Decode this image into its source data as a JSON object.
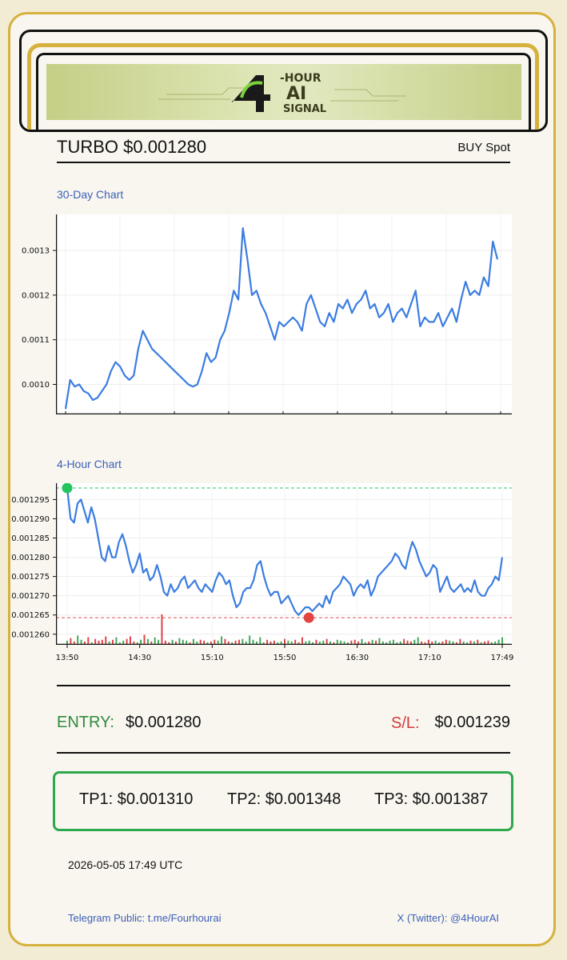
{
  "header": {
    "symbol": "TURBO",
    "price": "$0.001280",
    "title": "TURBO $0.001280",
    "trade_type": "BUY Spot",
    "logo": {
      "top_text": "-HOUR",
      "mid_text": "AI",
      "bottom_text": "SIGNAL",
      "numeral": "4"
    }
  },
  "chart_data": [
    {
      "type": "line",
      "title": "30-Day Chart",
      "ylim": [
        0.00094,
        0.00137
      ],
      "yticks": [
        "0.0010",
        "0.0011",
        "0.0012",
        "0.0013"
      ],
      "ytick_values": [
        0.001,
        0.0011,
        0.0012,
        0.0013
      ],
      "xlabel": "",
      "ylabel": "",
      "grid": true,
      "line_color": "#3b7de0",
      "series": [
        {
          "values": [
            0.000945,
            0.00101,
            0.000995,
            0.001,
            0.000985,
            0.00098,
            0.000965,
            0.00097,
            0.000985,
            0.001,
            0.00103,
            0.00105,
            0.00104,
            0.00102,
            0.00101,
            0.00102,
            0.00108,
            0.00112,
            0.0011,
            0.00108,
            0.00107,
            0.00106,
            0.00105,
            0.00104,
            0.00103,
            0.00102,
            0.00101,
            0.001,
            0.000995,
            0.001,
            0.00103,
            0.00107,
            0.00105,
            0.00106,
            0.0011,
            0.00112,
            0.00116,
            0.00121,
            0.00119,
            0.00135,
            0.00128,
            0.0012,
            0.00121,
            0.00118,
            0.00116,
            0.00113,
            0.0011,
            0.00114,
            0.00113,
            0.00114,
            0.00115,
            0.00114,
            0.00112,
            0.00118,
            0.0012,
            0.00117,
            0.00114,
            0.00113,
            0.00116,
            0.00114,
            0.00118,
            0.00117,
            0.00119,
            0.00116,
            0.00118,
            0.00119,
            0.00121,
            0.00117,
            0.00118,
            0.00115,
            0.00116,
            0.00118,
            0.00114,
            0.00116,
            0.00117,
            0.00115,
            0.00118,
            0.00121,
            0.00113,
            0.00115,
            0.00114,
            0.00114,
            0.00116,
            0.00113,
            0.00115,
            0.00117,
            0.00114,
            0.00119,
            0.00123,
            0.0012,
            0.00121,
            0.0012,
            0.00124,
            0.00122,
            0.00132,
            0.00128
          ],
          "dates": []
        }
      ]
    },
    {
      "type": "line",
      "title": "4-Hour Chart",
      "ylim": [
        0.0012585,
        0.001298
      ],
      "yticks": [
        "0.001260",
        "0.001265",
        "0.001270",
        "0.001275",
        "0.001280",
        "0.001285",
        "0.001290",
        "0.001295"
      ],
      "ytick_values": [
        0.00126,
        0.001265,
        0.00127,
        0.001275,
        0.00128,
        0.001285,
        0.00129,
        0.001295
      ],
      "xticks": [
        "13:50",
        "14:30",
        "15:10",
        "15:50",
        "16:30",
        "17:10",
        "17:49"
      ],
      "grid": true,
      "line_color": "#3b7de0",
      "high_line": {
        "value": 0.001298,
        "color": "#2ec26a"
      },
      "low_line": {
        "value": 0.0012643,
        "color": "#e05050"
      },
      "high_marker": {
        "x_index": 0,
        "value": 0.001298,
        "color": "#22c55e"
      },
      "low_marker": {
        "x_index": 70,
        "value": 0.0012643,
        "color": "#e24444"
      },
      "series": [
        {
          "values": [
            0.001298,
            0.00129,
            0.001289,
            0.001294,
            0.001295,
            0.001292,
            0.001289,
            0.001293,
            0.00129,
            0.001285,
            0.00128,
            0.001279,
            0.001283,
            0.00128,
            0.00128,
            0.001284,
            0.001286,
            0.001283,
            0.001279,
            0.001276,
            0.001278,
            0.001281,
            0.001276,
            0.001277,
            0.001274,
            0.001275,
            0.001278,
            0.001275,
            0.001271,
            0.00127,
            0.001273,
            0.001271,
            0.001272,
            0.001274,
            0.001275,
            0.001272,
            0.001273,
            0.001274,
            0.001272,
            0.001271,
            0.001273,
            0.001272,
            0.001271,
            0.001274,
            0.001276,
            0.001275,
            0.001273,
            0.001274,
            0.00127,
            0.001267,
            0.001268,
            0.001271,
            0.001272,
            0.001272,
            0.001274,
            0.001278,
            0.001279,
            0.001275,
            0.001272,
            0.00127,
            0.001271,
            0.001271,
            0.001268,
            0.001269,
            0.00127,
            0.001268,
            0.001266,
            0.001265,
            0.001266,
            0.001267,
            0.001267,
            0.001266,
            0.001267,
            0.001268,
            0.001267,
            0.00127,
            0.001268,
            0.001271,
            0.001272,
            0.001273,
            0.001275,
            0.001274,
            0.001273,
            0.00127,
            0.001272,
            0.001273,
            0.001272,
            0.001274,
            0.00127,
            0.001272,
            0.001275,
            0.001276,
            0.001277,
            0.001278,
            0.001279,
            0.001281,
            0.00128,
            0.001278,
            0.001277,
            0.001281,
            0.001284,
            0.001282,
            0.001279,
            0.001277,
            0.001275,
            0.001276,
            0.001278,
            0.001277,
            0.001271,
            0.001273,
            0.001275,
            0.001272,
            0.001271,
            0.001272,
            0.001273,
            0.001271,
            0.001272,
            0.001271,
            0.001274,
            0.001271,
            0.00127,
            0.00127,
            0.001272,
            0.001273,
            0.001275,
            0.001274,
            0.00128
          ]
        }
      ],
      "volume": {
        "max": 1.0,
        "values": [
          0.25,
          0.4,
          0.2,
          0.55,
          0.3,
          0.2,
          0.45,
          0.15,
          0.35,
          0.25,
          0.3,
          0.5,
          0.2,
          0.3,
          0.45,
          0.15,
          0.25,
          0.35,
          0.5,
          0.2,
          0.15,
          0.3,
          0.6,
          0.35,
          0.2,
          0.45,
          0.3,
          1.0,
          0.25,
          0.15,
          0.3,
          0.2,
          0.4,
          0.3,
          0.25,
          0.15,
          0.35,
          0.2,
          0.3,
          0.25,
          0.15,
          0.2,
          0.3,
          0.25,
          0.5,
          0.35,
          0.2,
          0.15,
          0.25,
          0.3,
          0.35,
          0.2,
          0.55,
          0.3,
          0.2,
          0.45,
          0.15,
          0.3,
          0.2,
          0.25,
          0.15,
          0.2,
          0.35,
          0.25,
          0.2,
          0.3,
          0.15,
          0.45,
          0.2,
          0.25,
          0.15,
          0.3,
          0.2,
          0.25,
          0.35,
          0.2,
          0.15,
          0.3,
          0.25,
          0.2,
          0.15,
          0.25,
          0.3,
          0.2,
          0.35,
          0.15,
          0.2,
          0.3,
          0.25,
          0.4,
          0.2,
          0.15,
          0.25,
          0.3,
          0.15,
          0.2,
          0.35,
          0.25,
          0.2,
          0.3,
          0.45,
          0.2,
          0.15,
          0.3,
          0.2,
          0.25,
          0.15,
          0.2,
          0.3,
          0.25,
          0.2,
          0.15,
          0.35,
          0.2,
          0.15,
          0.25,
          0.2,
          0.3,
          0.15,
          0.2,
          0.25,
          0.15,
          0.2,
          0.3,
          0.45
        ],
        "up_color": "#2e9e44",
        "down_color": "#d93030"
      }
    }
  ],
  "levels": {
    "entry_label": "ENTRY:",
    "entry_value": "$0.001280",
    "sl_label": "S/L:",
    "sl_value": "$0.001239"
  },
  "targets": [
    {
      "text": "TP1: $0.001310"
    },
    {
      "text": "TP2: $0.001348"
    },
    {
      "text": "TP3: $0.001387"
    }
  ],
  "timestamp": "2026-05-05 17:49 UTC",
  "footer": {
    "telegram": "Telegram Public: t.me/Fourhourai",
    "twitter": "X (Twitter): @4HourAI"
  },
  "colors": {
    "gold_border": "#d6b13e",
    "entry_green": "#2e8b3d",
    "sl_red": "#d23b3b",
    "tp_border_green": "#2ea84d",
    "link_blue": "#3a5fb8"
  }
}
